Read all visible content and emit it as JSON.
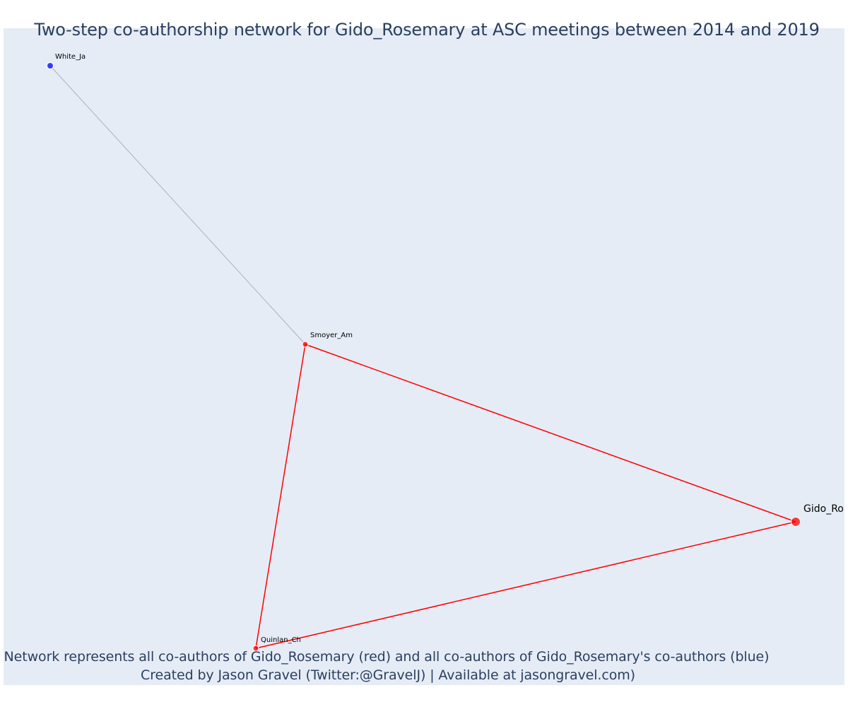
{
  "title": "Two-step co-authorship network for Gido_Rosemary at ASC meetings between 2014 and 2019",
  "caption_line1": "Network represents all co-authors of Gido_Rosemary (red) and all co-authors of Gido_Rosemary's co-authors (blue)",
  "caption_line2": "Created by Jason Gravel (Twitter:@GravelJ) | Available at jasongravel.com)",
  "colors": {
    "background": "#e5ecf6",
    "direct_coauthor": "#ff0000",
    "second_step_coauthor": "#0000ff",
    "direct_edge": "#ff0000",
    "second_step_edge": "#b0b0b8"
  },
  "network": {
    "nodes": [
      {
        "id": "Gido_Ro",
        "label": "Gido_Ro",
        "group": "focal"
      },
      {
        "id": "Smoyer_Am",
        "label": "Smoyer_Am",
        "group": "direct"
      },
      {
        "id": "Quinlan_Ch",
        "label": "Quinlan_Ch",
        "group": "direct"
      },
      {
        "id": "White_Ja",
        "label": "White_Ja",
        "group": "second_step"
      }
    ],
    "edges": [
      {
        "source": "White_Ja",
        "target": "Smoyer_Am",
        "group": "second_step"
      },
      {
        "source": "Smoyer_Am",
        "target": "Gido_Ro",
        "group": "direct"
      },
      {
        "source": "Smoyer_Am",
        "target": "Quinlan_Ch",
        "group": "direct"
      },
      {
        "source": "Quinlan_Ch",
        "target": "Gido_Ro",
        "group": "direct"
      }
    ]
  }
}
